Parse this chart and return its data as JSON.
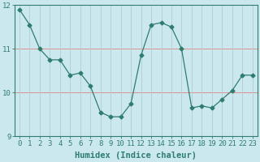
{
  "x": [
    0,
    1,
    2,
    3,
    4,
    5,
    6,
    7,
    8,
    9,
    10,
    11,
    12,
    13,
    14,
    15,
    16,
    17,
    18,
    19,
    20,
    21,
    22,
    23
  ],
  "y": [
    11.9,
    11.55,
    11.0,
    10.75,
    10.75,
    10.4,
    10.45,
    10.15,
    9.55,
    9.45,
    9.45,
    9.75,
    10.85,
    11.55,
    11.6,
    11.5,
    11.0,
    9.65,
    9.7,
    9.65,
    9.85,
    10.05,
    10.4,
    10.4
  ],
  "line_color": "#2e7d6e",
  "marker": "D",
  "marker_size": 2.5,
  "bg_color": "#cce8ef",
  "grid_color_h": "#e08080",
  "grid_color_v": "#b0ccd4",
  "xlabel": "Humidex (Indice chaleur)",
  "xlim": [
    -0.5,
    23.5
  ],
  "ylim": [
    9.0,
    12.0
  ],
  "yticks": [
    9,
    10,
    11,
    12
  ],
  "xticks": [
    0,
    1,
    2,
    3,
    4,
    5,
    6,
    7,
    8,
    9,
    10,
    11,
    12,
    13,
    14,
    15,
    16,
    17,
    18,
    19,
    20,
    21,
    22,
    23
  ],
  "tick_fontsize": 6.5,
  "xlabel_fontsize": 7.5,
  "axis_color": "#2e7d6e"
}
